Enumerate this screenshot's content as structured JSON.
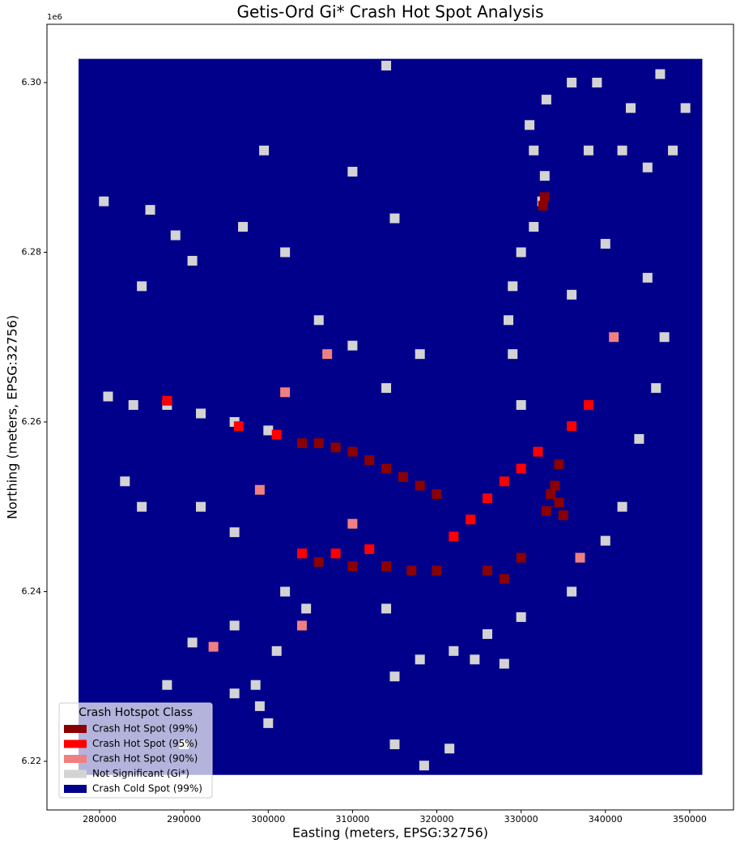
{
  "chart_data": {
    "type": "raster-map",
    "title": "Getis-Ord Gi* Crash Hot Spot Analysis",
    "xlabel": "Easting (meters, EPSG:32756)",
    "ylabel": "Northing (meters, EPSG:32756)",
    "y_offset_label": "1e6",
    "xlim": [
      273750,
      355200
    ],
    "ylim": [
      6.21427,
      6.30687
    ],
    "xticks": [
      280000,
      290000,
      300000,
      310000,
      320000,
      330000,
      340000,
      350000
    ],
    "yticks": [
      6.22,
      6.24,
      6.26,
      6.28,
      {
        "value": 6.3,
        "label": "6.30"
      }
    ],
    "legend": {
      "title": "Crash Hotspot Class",
      "loc": "lower left"
    },
    "classes": [
      {
        "name": "Crash Hot Spot (99%)",
        "color": "#8b0000"
      },
      {
        "name": "Crash Hot Spot (95%)",
        "color": "#ff0000"
      },
      {
        "name": "Crash Hot Spot (90%)",
        "color": "#f08080"
      },
      {
        "name": "Not Significant (Gi*)",
        "color": "#d3d3d3"
      },
      {
        "name": "Crash Cold Spot (99%)",
        "color": "#00008b"
      }
    ],
    "background_class": 4,
    "extent": {
      "x": [
        277500,
        351500
      ],
      "y": [
        6.2184,
        6.3028
      ]
    },
    "cells": [
      [
        330000,
        6.262,
        3
      ],
      [
        329000,
        6.268,
        3
      ],
      [
        328500,
        6.272,
        3
      ],
      [
        329000,
        6.276,
        3
      ],
      [
        330000,
        6.28,
        3
      ],
      [
        331500,
        6.283,
        3
      ],
      [
        332500,
        6.286,
        3
      ],
      [
        332800,
        6.289,
        3
      ],
      [
        331500,
        6.292,
        3
      ],
      [
        331000,
        6.295,
        3
      ],
      [
        333000,
        6.298,
        3
      ],
      [
        336000,
        6.3,
        3
      ],
      [
        339000,
        6.3,
        3
      ],
      [
        284000,
        6.262,
        3
      ],
      [
        288000,
        6.262,
        3
      ],
      [
        292000,
        6.261,
        3
      ],
      [
        296000,
        6.26,
        3
      ],
      [
        300000,
        6.259,
        3
      ],
      [
        301000,
        6.233,
        3
      ],
      [
        298500,
        6.229,
        3
      ],
      [
        296000,
        6.228,
        3
      ],
      [
        302000,
        6.24,
        3
      ],
      [
        304500,
        6.238,
        3
      ],
      [
        314000,
        6.238,
        3
      ],
      [
        315000,
        6.23,
        3
      ],
      [
        315000,
        6.222,
        3
      ],
      [
        318000,
        6.232,
        3
      ],
      [
        322000,
        6.233,
        3
      ],
      [
        324500,
        6.232,
        3
      ],
      [
        326000,
        6.235,
        3
      ],
      [
        328000,
        6.2315,
        3
      ],
      [
        330000,
        6.237,
        3
      ],
      [
        336000,
        6.24,
        3
      ],
      [
        340000,
        6.246,
        3
      ],
      [
        342000,
        6.25,
        3
      ],
      [
        344000,
        6.258,
        3
      ],
      [
        346000,
        6.264,
        3
      ],
      [
        347000,
        6.27,
        3
      ],
      [
        345000,
        6.277,
        3
      ],
      [
        340000,
        6.281,
        3
      ],
      [
        336000,
        6.275,
        3
      ],
      [
        318000,
        6.268,
        3
      ],
      [
        314000,
        6.264,
        3
      ],
      [
        310000,
        6.269,
        3
      ],
      [
        306000,
        6.272,
        3
      ],
      [
        302000,
        6.28,
        3
      ],
      [
        297000,
        6.283,
        3
      ],
      [
        291000,
        6.279,
        3
      ],
      [
        285000,
        6.276,
        3
      ],
      [
        280500,
        6.286,
        3
      ],
      [
        286000,
        6.285,
        3
      ],
      [
        289000,
        6.282,
        3
      ],
      [
        299500,
        6.292,
        3
      ],
      [
        310000,
        6.2895,
        3
      ],
      [
        315000,
        6.284,
        3
      ],
      [
        314000,
        6.302,
        3
      ],
      [
        281000,
        6.263,
        3
      ],
      [
        283000,
        6.253,
        3
      ],
      [
        285000,
        6.25,
        3
      ],
      [
        292000,
        6.25,
        3
      ],
      [
        296000,
        6.247,
        3
      ],
      [
        296000,
        6.236,
        3
      ],
      [
        290000,
        6.222,
        3
      ],
      [
        291000,
        6.234,
        3
      ],
      [
        288000,
        6.229,
        3
      ],
      [
        300000,
        6.2245,
        3
      ],
      [
        299000,
        6.2265,
        3
      ],
      [
        318500,
        6.2195,
        3
      ],
      [
        321500,
        6.2215,
        3
      ],
      [
        342000,
        6.292,
        3
      ],
      [
        345000,
        6.29,
        3
      ],
      [
        348000,
        6.292,
        3
      ],
      [
        349500,
        6.297,
        3
      ],
      [
        346500,
        6.301,
        3
      ],
      [
        343000,
        6.297,
        3
      ],
      [
        338000,
        6.292,
        3
      ],
      [
        288000,
        6.2625,
        1
      ],
      [
        296500,
        6.2595,
        1
      ],
      [
        301000,
        6.2585,
        1
      ],
      [
        304000,
        6.2445,
        1
      ],
      [
        308000,
        6.2445,
        1
      ],
      [
        312000,
        6.245,
        1
      ],
      [
        322000,
        6.2465,
        1
      ],
      [
        324000,
        6.2485,
        1
      ],
      [
        326000,
        6.251,
        1
      ],
      [
        328000,
        6.253,
        1
      ],
      [
        330000,
        6.2545,
        1
      ],
      [
        332000,
        6.2565,
        1
      ],
      [
        336000,
        6.2595,
        1
      ],
      [
        338000,
        6.262,
        1
      ],
      [
        307000,
        6.268,
        2
      ],
      [
        302000,
        6.2635,
        2
      ],
      [
        299000,
        6.252,
        2
      ],
      [
        310000,
        6.248,
        2
      ],
      [
        337000,
        6.244,
        2
      ],
      [
        341000,
        6.27,
        2
      ],
      [
        293500,
        6.2335,
        2
      ],
      [
        304000,
        6.236,
        2
      ],
      [
        332800,
        6.2865,
        0
      ],
      [
        332600,
        6.2855,
        0
      ],
      [
        304000,
        6.2575,
        0
      ],
      [
        306000,
        6.2575,
        0
      ],
      [
        308000,
        6.257,
        0
      ],
      [
        310000,
        6.2565,
        0
      ],
      [
        312000,
        6.2555,
        0
      ],
      [
        314000,
        6.2545,
        0
      ],
      [
        316000,
        6.2535,
        0
      ],
      [
        318000,
        6.2525,
        0
      ],
      [
        320000,
        6.2515,
        0
      ],
      [
        333500,
        6.2515,
        0
      ],
      [
        334500,
        6.2505,
        0
      ],
      [
        335000,
        6.249,
        0
      ],
      [
        333000,
        6.2495,
        0
      ],
      [
        334000,
        6.2525,
        0
      ],
      [
        334500,
        6.255,
        0
      ],
      [
        330000,
        6.244,
        0
      ],
      [
        328000,
        6.2415,
        0
      ],
      [
        326000,
        6.2425,
        0
      ],
      [
        306000,
        6.2435,
        0
      ],
      [
        310000,
        6.243,
        0
      ],
      [
        314000,
        6.243,
        0
      ],
      [
        317000,
        6.2425,
        0
      ],
      [
        320000,
        6.2425,
        0
      ]
    ]
  }
}
